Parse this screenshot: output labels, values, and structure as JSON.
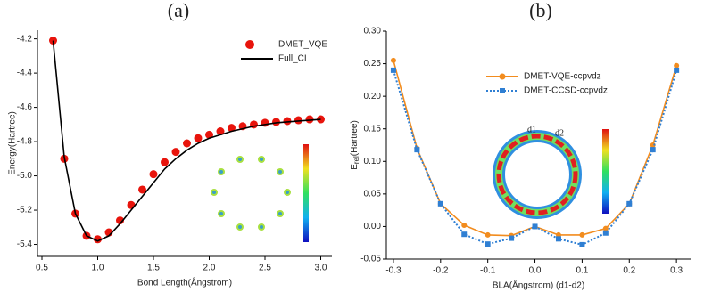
{
  "chart_data": [
    {
      "type": "line",
      "title": "(a)",
      "ylabel": "Energy(Hartree)",
      "xlabel": "Bond Length(Ångstrom)",
      "xlim": [
        0.46,
        3.1
      ],
      "ylim": [
        -5.47,
        -4.15
      ],
      "xticks": [
        0.5,
        {
          "value": 1,
          "label": "1.0"
        },
        1.5,
        {
          "value": 2,
          "label": "2.0"
        },
        2.5,
        {
          "value": 3,
          "label": "3.0"
        }
      ],
      "yticks": [
        -4.2,
        -4.4,
        -4.6,
        -4.8,
        {
          "value": -5,
          "label": "-5.0"
        },
        -5.2,
        -5.4
      ],
      "legend": "upper right",
      "series": [
        {
          "name": "DMET_VQE",
          "color": "#e8140c",
          "mode": "markers",
          "marker": "circle",
          "x": [
            0.6,
            0.7,
            0.8,
            0.9,
            1.0,
            1.1,
            1.2,
            1.3,
            1.4,
            1.5,
            1.6,
            1.7,
            1.8,
            1.9,
            2.0,
            2.1,
            2.2,
            2.3,
            2.4,
            2.5,
            2.6,
            2.7,
            2.8,
            2.9,
            3.0
          ],
          "values": [
            -4.21,
            -4.9,
            -5.22,
            -5.35,
            -5.37,
            -5.33,
            -5.26,
            -5.17,
            -5.08,
            -4.99,
            -4.92,
            -4.86,
            -4.81,
            -4.78,
            -4.76,
            -4.74,
            -4.72,
            -4.71,
            -4.7,
            -4.69,
            -4.685,
            -4.68,
            -4.675,
            -4.67,
            -4.67
          ]
        },
        {
          "name": "Full_CI",
          "color": "#000000",
          "mode": "line",
          "line_style": "solid",
          "x": [
            0.6,
            0.7,
            0.8,
            0.9,
            1.0,
            1.1,
            1.2,
            1.3,
            1.4,
            1.5,
            1.6,
            1.7,
            1.8,
            1.9,
            2.0,
            2.2,
            2.4,
            2.6,
            2.8,
            3.0
          ],
          "values": [
            -4.21,
            -4.89,
            -5.22,
            -5.35,
            -5.38,
            -5.35,
            -5.28,
            -5.2,
            -5.12,
            -5.04,
            -4.96,
            -4.9,
            -4.85,
            -4.81,
            -4.78,
            -4.74,
            -4.71,
            -4.69,
            -4.68,
            -4.67
          ]
        }
      ]
    },
    {
      "type": "line",
      "title": "(b)",
      "ylabel_parts": [
        "E",
        "rel",
        "(Hartree)"
      ],
      "xlabel": "BLA(Ångstrom) (d1-d2)",
      "annotations": [
        "d1",
        "d2"
      ],
      "xlim": [
        -0.315,
        0.33
      ],
      "ylim": [
        -0.05,
        0.3
      ],
      "xticks": [
        -0.3,
        -0.2,
        -0.1,
        {
          "value": 0,
          "label": "0.0"
        },
        0.1,
        0.2,
        0.3
      ],
      "yticks": [
        -0.05,
        {
          "value": 0,
          "label": "0.00"
        },
        0.05,
        {
          "value": 0.1,
          "label": "0.10"
        },
        0.15,
        {
          "value": 0.2,
          "label": "0.20"
        },
        0.25,
        {
          "value": 0.3,
          "label": "0.30"
        }
      ],
      "legend": "upper center",
      "series": [
        {
          "name": "DMET-VQE-ccpvdz",
          "color": "#f28c1e",
          "mode": "lines+markers",
          "marker": "circle",
          "line_style": "solid",
          "x": [
            -0.3,
            -0.25,
            -0.2,
            -0.15,
            -0.1,
            -0.05,
            0,
            0.05,
            0.1,
            0.15,
            0.2,
            0.25,
            0.3
          ],
          "values": [
            0.255,
            0.12,
            0.035,
            0.002,
            -0.013,
            -0.014,
            0.0,
            -0.013,
            -0.013,
            -0.003,
            0.035,
            0.125,
            0.247
          ]
        },
        {
          "name": "DMET-CCSD-ccpvdz",
          "color": "#2f7fd3",
          "mode": "lines+markers",
          "marker": "square",
          "line_style": "dotted",
          "x": [
            -0.3,
            -0.25,
            -0.2,
            -0.15,
            -0.1,
            -0.05,
            0,
            0.05,
            0.1,
            0.15,
            0.2,
            0.25,
            0.3
          ],
          "values": [
            0.24,
            0.118,
            0.035,
            -0.012,
            -0.027,
            -0.018,
            0.0,
            -0.019,
            -0.028,
            -0.01,
            0.035,
            0.118,
            0.24
          ]
        }
      ]
    }
  ]
}
